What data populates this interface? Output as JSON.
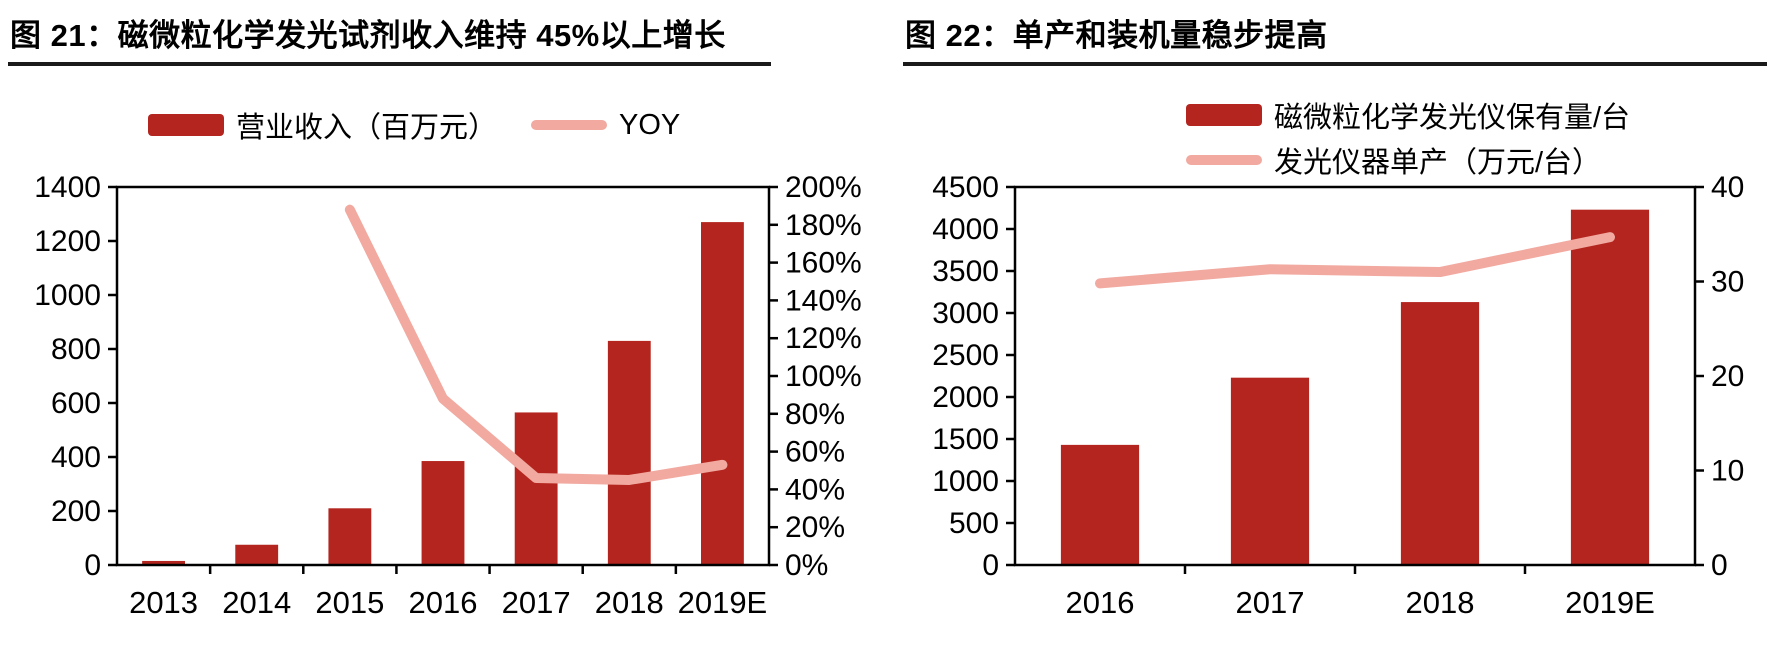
{
  "colors": {
    "bar": "#b3251e",
    "line": "#f1a9a0",
    "axis": "#000000",
    "rule": "#1a1a1a"
  },
  "charts": [
    {
      "title": "图 21：磁微粒化学发光试剂收入维持 45%以上增长",
      "legend": [
        {
          "type": "bar",
          "label": "营业收入（百万元）"
        },
        {
          "type": "line",
          "label": "YOY"
        }
      ],
      "chart_data": {
        "type": "bar+line",
        "categories": [
          "2013",
          "2014",
          "2015",
          "2016",
          "2017",
          "2018",
          "2019E"
        ],
        "series": [
          {
            "name": "营业收入（百万元）",
            "type": "bar",
            "axis": "left",
            "values": [
              15,
              75,
              210,
              385,
              565,
              830,
              1270
            ]
          },
          {
            "name": "YOY",
            "type": "line",
            "axis": "right",
            "values": [
              null,
              null,
              188,
              88,
              46,
              45,
              53
            ]
          }
        ],
        "left_axis": {
          "min": 0,
          "max": 1400,
          "labels": [
            "1400",
            "1200",
            "1000",
            "800",
            "600",
            "400",
            "200",
            "0"
          ]
        },
        "right_axis": {
          "min": 0,
          "max": 200,
          "labels": [
            "200%",
            "180%",
            "160%",
            "140%",
            "120%",
            "100%",
            "80%",
            "60%",
            "40%",
            "20%",
            "0%"
          ]
        },
        "grid": false,
        "legend_position": "top"
      }
    },
    {
      "title": "图 22：单产和装机量稳步提高",
      "legend": [
        {
          "type": "bar",
          "label": "磁微粒化学发光仪保有量/台"
        },
        {
          "type": "line",
          "label": "发光仪器单产（万元/台）"
        }
      ],
      "chart_data": {
        "type": "bar+line",
        "categories": [
          "2016",
          "2017",
          "2018",
          "2019E"
        ],
        "series": [
          {
            "name": "磁微粒化学发光仪保有量/台",
            "type": "bar",
            "axis": "left",
            "values": [
              1430,
              2230,
              3130,
              4230
            ]
          },
          {
            "name": "发光仪器单产（万元/台）",
            "type": "line",
            "axis": "right",
            "values": [
              29.8,
              31.3,
              31.0,
              34.7
            ]
          }
        ],
        "left_axis": {
          "min": 0,
          "max": 4500,
          "labels": [
            "4500",
            "4000",
            "3500",
            "3000",
            "2500",
            "2000",
            "1500",
            "1000",
            "500",
            "0"
          ]
        },
        "right_axis": {
          "min": 0,
          "max": 40,
          "labels": [
            "40",
            "30",
            "20",
            "10",
            "0"
          ]
        },
        "grid": false,
        "legend_position": "top"
      }
    }
  ]
}
